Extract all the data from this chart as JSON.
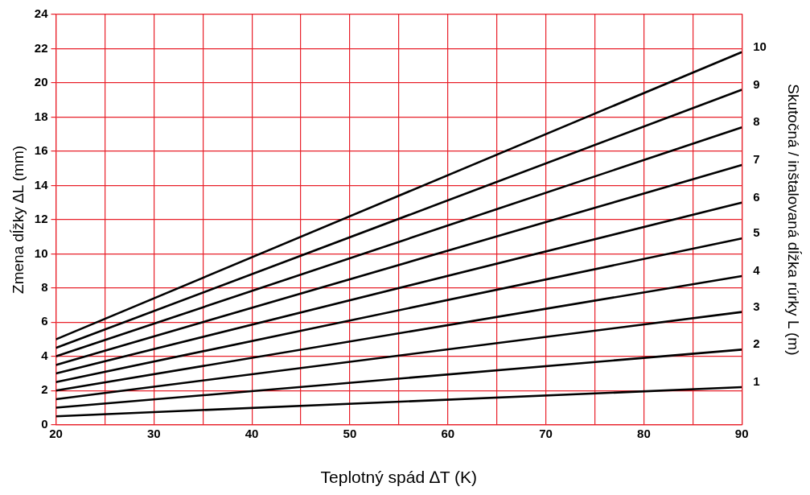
{
  "chart_data": {
    "type": "line",
    "xlabel": "Teplotný spád ∆T (K)",
    "ylabel": "Zmena dĺžky ∆L (mm)",
    "y2label": "Skutočná / inštalovaná dĺžka rúrky L (m)",
    "x": [
      20,
      90
    ],
    "xlim": [
      20,
      90
    ],
    "xticks": [
      20,
      {
        "value": 25,
        "label": null
      },
      30,
      {
        "value": 35,
        "label": null
      },
      40,
      {
        "value": 45,
        "label": null
      },
      50,
      {
        "value": 55,
        "label": null
      },
      60,
      {
        "value": 65,
        "label": null
      },
      70,
      {
        "value": 75,
        "label": null
      },
      80,
      {
        "value": 85,
        "label": null
      },
      90
    ],
    "ylim": [
      0,
      24
    ],
    "yticks": [
      0,
      2,
      4,
      6,
      8,
      10,
      12,
      14,
      16,
      18,
      20,
      22,
      24
    ],
    "grid": true,
    "legend": false,
    "marker": "none",
    "line_style": "solid",
    "series": [
      {
        "name": "1",
        "color": "#000000",
        "values": [
          0.5,
          2.2
        ]
      },
      {
        "name": "2",
        "color": "#000000",
        "values": [
          1.0,
          4.4
        ]
      },
      {
        "name": "3",
        "color": "#000000",
        "values": [
          1.5,
          6.6
        ]
      },
      {
        "name": "4",
        "color": "#000000",
        "values": [
          2.0,
          8.7
        ]
      },
      {
        "name": "5",
        "color": "#000000",
        "values": [
          2.5,
          10.9
        ]
      },
      {
        "name": "6",
        "color": "#000000",
        "values": [
          3.0,
          13.0
        ]
      },
      {
        "name": "7",
        "color": "#000000",
        "values": [
          3.5,
          15.2
        ]
      },
      {
        "name": "8",
        "color": "#000000",
        "values": [
          4.0,
          17.4
        ]
      },
      {
        "name": "9",
        "color": "#000000",
        "values": [
          4.5,
          19.6
        ]
      },
      {
        "name": "10",
        "color": "#000000",
        "values": [
          5.0,
          21.8
        ]
      }
    ]
  }
}
